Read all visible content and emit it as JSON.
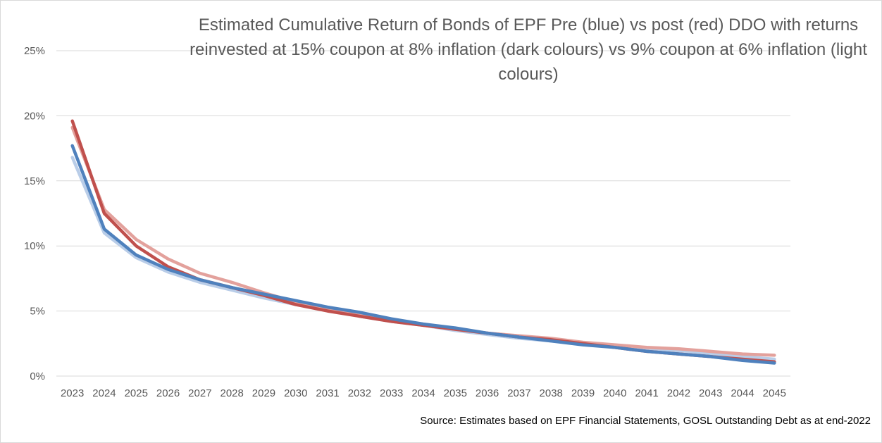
{
  "chart_data": {
    "type": "line",
    "title": "Estimated Cumulative Return of Bonds of EPF Pre (blue) vs post (red) DDO with returns reinvested at 15% coupon at 8% inflation (dark colours) vs 9% coupon at 6% inflation (light colours)",
    "source": "Source: Estimates based on EPF Financial Statements, GOSL Outstanding Debt as at end-2022",
    "x": [
      "2023",
      "2024",
      "2025",
      "2026",
      "2027",
      "2028",
      "2029",
      "2030",
      "2031",
      "2032",
      "2033",
      "2034",
      "2035",
      "2036",
      "2037",
      "2038",
      "2039",
      "2040",
      "2041",
      "2042",
      "2043",
      "2044",
      "2045"
    ],
    "y_ticks": [
      "0%",
      "5%",
      "10%",
      "15%",
      "20%",
      "25%"
    ],
    "ylim": [
      0,
      25
    ],
    "grid": true,
    "legend": "none",
    "series": [
      {
        "color": "#b9cde8",
        "values": [
          16.8,
          11.0,
          9.1,
          8.0,
          7.2,
          6.6,
          6.0,
          5.5,
          5.1,
          4.6,
          4.2,
          3.9,
          3.5,
          3.2,
          2.9,
          2.7,
          2.5,
          2.3,
          2.1,
          1.9,
          1.7,
          1.5,
          1.3
        ]
      },
      {
        "color": "#e3a19c",
        "values": [
          19.1,
          12.8,
          10.5,
          9.0,
          7.9,
          7.2,
          6.4,
          5.7,
          5.2,
          4.7,
          4.3,
          3.9,
          3.6,
          3.3,
          3.1,
          2.9,
          2.6,
          2.4,
          2.2,
          2.1,
          1.9,
          1.7,
          1.6
        ]
      },
      {
        "color": "#c0504d",
        "values": [
          19.6,
          12.5,
          10.0,
          8.4,
          7.4,
          6.8,
          6.2,
          5.5,
          5.0,
          4.6,
          4.2,
          3.9,
          3.6,
          3.3,
          3.0,
          2.8,
          2.5,
          2.2,
          1.9,
          1.7,
          1.5,
          1.3,
          1.1
        ]
      },
      {
        "color": "#4f81bd",
        "values": [
          17.7,
          11.3,
          9.3,
          8.2,
          7.4,
          6.8,
          6.3,
          5.8,
          5.3,
          4.9,
          4.4,
          4.0,
          3.7,
          3.3,
          3.0,
          2.7,
          2.4,
          2.2,
          1.9,
          1.7,
          1.5,
          1.2,
          1.0
        ]
      }
    ]
  }
}
